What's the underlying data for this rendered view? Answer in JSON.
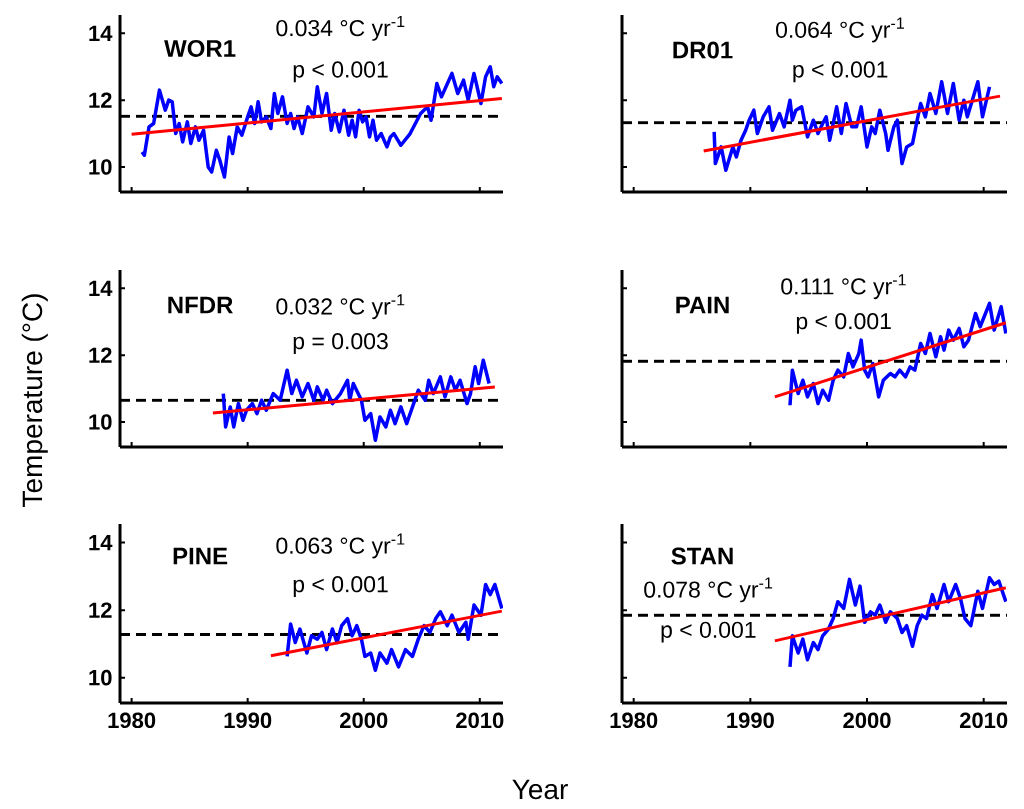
{
  "chart_data": [
    {
      "type": "line",
      "title": "WOR1",
      "annotations": [
        "0.034 °C yr$^{-1}$",
        "p < 0.001"
      ],
      "xlim": [
        1979,
        2012
      ],
      "ylim": [
        9.25,
        14.55
      ],
      "xticks": [
        1980,
        1990,
        2000,
        2010
      ],
      "yticks": [
        10,
        12,
        14
      ],
      "tick_labels": "y",
      "grid": false,
      "ref_lines": [
        {
          "axis": "y",
          "value": 11.52,
          "color": "#000000",
          "line_style": "dashed"
        }
      ],
      "series": [
        {
          "color": "#0000ff",
          "x": [
            1980.9,
            1981.1,
            1981.5,
            1981.9,
            1982.4,
            1982.9,
            1983.2,
            1983.5,
            1983.8,
            1984.1,
            1984.4,
            1984.8,
            1985.1,
            1985.5,
            1985.8,
            1986.2,
            1986.6,
            1986.9,
            1987.3,
            1987.6,
            1988.0,
            1988.4,
            1988.7,
            1989.1,
            1989.5,
            1990.0,
            1990.3,
            1990.6,
            1990.9,
            1991.2,
            1991.6,
            1992.0,
            1992.3,
            1992.6,
            1993.0,
            1993.4,
            1993.7,
            1994.0,
            1994.3,
            1994.7,
            1995.2,
            1995.7,
            1996.0,
            1996.4,
            1996.8,
            1997.2,
            1997.5,
            1997.9,
            1998.3,
            1998.7,
            1999.0,
            1999.3,
            1999.6,
            1999.9,
            2000.2,
            2000.5,
            2000.8,
            2001.1,
            2001.5,
            2002.0,
            2002.3,
            2002.6,
            2003.2,
            2004.0,
            2004.9,
            2005.5,
            2005.8,
            2006.3,
            2006.7,
            2007.6,
            2008.1,
            2008.6,
            2009.0,
            2009.5,
            2010.1,
            2010.5,
            2010.9,
            2011.2,
            2011.5,
            2011.9
          ],
          "values": [
            10.45,
            10.35,
            11.2,
            11.3,
            12.3,
            11.7,
            12.0,
            11.95,
            11.0,
            11.3,
            10.75,
            11.35,
            10.7,
            11.2,
            10.8,
            11.1,
            10.0,
            9.85,
            10.5,
            10.2,
            9.7,
            10.9,
            10.4,
            11.2,
            10.95,
            11.5,
            11.8,
            11.3,
            11.95,
            11.35,
            11.5,
            11.15,
            12.2,
            11.6,
            12.1,
            11.3,
            11.6,
            11.15,
            11.5,
            11.0,
            11.8,
            11.5,
            12.4,
            11.6,
            12.2,
            11.1,
            11.6,
            11.05,
            11.7,
            10.95,
            11.4,
            10.9,
            11.7,
            11.35,
            11.5,
            10.9,
            11.4,
            10.8,
            11.0,
            10.6,
            10.9,
            11.0,
            10.65,
            11.0,
            11.6,
            11.8,
            11.4,
            12.5,
            12.1,
            12.8,
            12.2,
            12.6,
            12.0,
            12.8,
            11.9,
            12.7,
            13.0,
            12.4,
            12.7,
            12.5
          ]
        },
        {
          "type": "line",
          "color": "#ff0000",
          "x": [
            1980,
            2011.9
          ],
          "values": [
            10.98,
            12.05
          ]
        }
      ]
    },
    {
      "type": "line",
      "title": "DR01",
      "annotations": [
        "0.064 °C yr$^{-1}$",
        "p < 0.001"
      ],
      "xlim": [
        1979,
        2012
      ],
      "ylim": [
        9.25,
        14.55
      ],
      "xticks": [
        1980,
        1990,
        2000,
        2010
      ],
      "yticks": [
        10,
        12,
        14
      ],
      "tick_labels": false,
      "grid": false,
      "ref_lines": [
        {
          "axis": "y",
          "value": 11.32,
          "color": "#000000",
          "line_style": "dashed"
        }
      ],
      "series": [
        {
          "color": "#0000ff",
          "x": [
            1986.9,
            1987.0,
            1987.5,
            1987.9,
            1988.5,
            1988.8,
            1989.2,
            1989.6,
            1989.9,
            1990.3,
            1990.6,
            1991.1,
            1991.6,
            1991.9,
            1992.5,
            1992.9,
            1993.4,
            1993.6,
            1993.9,
            1994.4,
            1994.9,
            1995.4,
            1995.8,
            1996.2,
            1996.5,
            1996.8,
            1997.4,
            1997.8,
            1998.2,
            1998.7,
            1999.1,
            1999.5,
            2000.0,
            2000.4,
            2000.7,
            2001.1,
            2001.6,
            2001.8,
            2002.3,
            2002.6,
            2003.0,
            2003.4,
            2003.9,
            2004.3,
            2004.6,
            2005.0,
            2005.4,
            2005.9,
            2006.4,
            2006.9,
            2007.4,
            2007.9,
            2008.3,
            2008.6,
            2009.5,
            2009.9,
            2010.5
          ],
          "values": [
            11.05,
            10.1,
            10.6,
            9.9,
            10.6,
            10.3,
            10.8,
            11.1,
            11.4,
            11.7,
            11.0,
            11.5,
            11.8,
            11.1,
            11.6,
            11.2,
            12.0,
            11.4,
            11.7,
            11.8,
            10.9,
            11.4,
            11.0,
            11.3,
            11.5,
            10.8,
            11.8,
            11.0,
            11.9,
            11.2,
            11.2,
            11.8,
            10.6,
            11.2,
            11.0,
            11.7,
            11.0,
            10.5,
            11.2,
            11.4,
            10.1,
            10.6,
            10.7,
            11.4,
            11.9,
            11.5,
            12.2,
            11.6,
            12.55,
            11.6,
            12.5,
            11.4,
            12.0,
            11.5,
            12.55,
            11.5,
            12.4
          ]
        },
        {
          "type": "line",
          "color": "#ff0000",
          "x": [
            1986.0,
            2011.4
          ],
          "values": [
            10.48,
            12.12
          ]
        }
      ]
    },
    {
      "type": "line",
      "title": "NFDR",
      "ylabel": "Temperature (°C)",
      "annotations": [
        "0.032 °C yr$^{-1}$",
        "p = 0.003"
      ],
      "xlim": [
        1979,
        2012
      ],
      "ylim": [
        9.25,
        14.55
      ],
      "xticks": [
        1980,
        1990,
        2000,
        2010
      ],
      "yticks": [
        10,
        12,
        14
      ],
      "tick_labels": "y",
      "grid": false,
      "ref_lines": [
        {
          "axis": "y",
          "value": 10.65,
          "color": "#000000",
          "line_style": "dashed"
        }
      ],
      "series": [
        {
          "color": "#0000ff",
          "x": [
            1987.9,
            1988.1,
            1988.5,
            1988.8,
            1989.2,
            1989.6,
            1989.9,
            1990.4,
            1990.8,
            1991.2,
            1991.6,
            1992.2,
            1992.8,
            1993.4,
            1993.8,
            1994.2,
            1994.7,
            1995.2,
            1995.7,
            1996.0,
            1996.5,
            1996.8,
            1997.3,
            1998.0,
            1998.6,
            1998.8,
            1999.1,
            1999.8,
            2000.1,
            2000.6,
            2001.0,
            2001.4,
            2001.9,
            2002.3,
            2002.7,
            2003.2,
            2003.7,
            2004.3,
            2004.7,
            2005.3,
            2005.6,
            2006.0,
            2006.6,
            2007.0,
            2007.5,
            2007.9,
            2008.3,
            2008.9,
            2009.2,
            2009.6,
            2009.9,
            2010.3,
            2010.8
          ],
          "values": [
            10.85,
            9.85,
            10.45,
            9.85,
            10.55,
            10.05,
            10.35,
            10.55,
            10.25,
            10.65,
            10.35,
            10.85,
            10.65,
            11.55,
            10.85,
            11.25,
            10.75,
            11.15,
            10.65,
            11.05,
            10.65,
            10.95,
            10.55,
            10.85,
            11.25,
            10.65,
            11.15,
            10.65,
            10.05,
            10.25,
            9.45,
            10.15,
            9.85,
            10.35,
            9.95,
            10.45,
            9.95,
            10.55,
            10.95,
            10.65,
            11.25,
            10.85,
            11.35,
            10.75,
            11.35,
            10.95,
            11.25,
            10.55,
            10.85,
            11.65,
            11.15,
            11.85,
            11.15
          ]
        },
        {
          "type": "line",
          "color": "#ff0000",
          "x": [
            1987.0,
            2011.3
          ],
          "values": [
            10.27,
            11.05
          ]
        }
      ]
    },
    {
      "type": "line",
      "title": "PAIN",
      "annotations": [
        "0.111 °C yr$^{-1}$",
        "p < 0.001"
      ],
      "xlim": [
        1979,
        2012
      ],
      "ylim": [
        9.25,
        14.55
      ],
      "xticks": [
        1980,
        1990,
        2000,
        2010
      ],
      "yticks": [
        10,
        12,
        14
      ],
      "tick_labels": false,
      "grid": false,
      "ref_lines": [
        {
          "axis": "y",
          "value": 11.82,
          "color": "#000000",
          "line_style": "dashed"
        }
      ],
      "series": [
        {
          "color": "#0000ff",
          "x": [
            1993.4,
            1993.6,
            1994.1,
            1994.5,
            1994.9,
            1995.4,
            1995.8,
            1996.2,
            1996.7,
            1997.1,
            1997.5,
            1998.0,
            1998.4,
            1998.8,
            1999.3,
            1999.5,
            1999.8,
            2000.1,
            2000.5,
            2001.0,
            2001.4,
            2002.0,
            2002.4,
            2002.8,
            2003.3,
            2003.7,
            2004.1,
            2004.6,
            2005.0,
            2005.4,
            2005.9,
            2006.3,
            2006.6,
            2007.0,
            2007.4,
            2007.9,
            2008.3,
            2008.7,
            2009.3,
            2009.7,
            2010.5,
            2010.9,
            2011.5,
            2011.9
          ],
          "values": [
            10.5,
            11.55,
            10.85,
            11.25,
            10.75,
            11.15,
            10.55,
            10.95,
            10.65,
            11.25,
            11.55,
            11.35,
            12.05,
            11.65,
            12.05,
            12.45,
            11.55,
            11.35,
            11.75,
            10.75,
            11.25,
            11.45,
            11.35,
            11.55,
            11.35,
            11.65,
            11.55,
            12.35,
            12.05,
            12.65,
            11.95,
            12.55,
            12.15,
            12.75,
            12.45,
            12.8,
            12.25,
            12.45,
            13.25,
            12.85,
            13.55,
            12.75,
            13.45,
            12.65
          ]
        },
        {
          "type": "line",
          "color": "#ff0000",
          "x": [
            1992.1,
            2011.9
          ],
          "values": [
            10.75,
            12.97
          ]
        }
      ]
    },
    {
      "type": "line",
      "title": "PINE",
      "xlabel": "Year",
      "annotations": [
        "0.063 °C yr$^{-1}$",
        "p < 0.001"
      ],
      "xlim": [
        1979,
        2012
      ],
      "ylim": [
        9.25,
        14.55
      ],
      "xticks": [
        1980,
        1990,
        2000,
        2010
      ],
      "yticks": [
        10,
        12,
        14
      ],
      "grid": false,
      "ref_lines": [
        {
          "axis": "y",
          "value": 11.28,
          "color": "#000000",
          "line_style": "dashed"
        }
      ],
      "series": [
        {
          "color": "#0000ff",
          "x": [
            1993.4,
            1993.7,
            1994.1,
            1994.5,
            1995.1,
            1995.5,
            1996.0,
            1996.4,
            1996.8,
            1997.3,
            1997.7,
            1998.1,
            1998.6,
            1999.0,
            1999.4,
            1999.8,
            2000.1,
            2000.6,
            2001.0,
            2001.4,
            2002.0,
            2002.4,
            2003.0,
            2003.6,
            2004.2,
            2004.7,
            2005.2,
            2005.7,
            2006.2,
            2006.6,
            2007.2,
            2007.6,
            2008.2,
            2008.8,
            2009.0,
            2009.5,
            2010.1,
            2010.5,
            2010.9,
            2011.3,
            2011.9
          ],
          "values": [
            10.63,
            11.59,
            11.04,
            11.44,
            10.73,
            11.24,
            11.14,
            11.34,
            10.83,
            11.44,
            11.04,
            11.54,
            11.75,
            11.24,
            11.54,
            11.14,
            10.63,
            10.73,
            10.22,
            10.73,
            10.43,
            10.83,
            10.32,
            10.83,
            10.63,
            11.14,
            11.54,
            11.34,
            11.75,
            11.95,
            11.54,
            11.85,
            11.34,
            11.64,
            11.14,
            12.15,
            11.85,
            12.76,
            12.46,
            12.76,
            12.05
          ]
        },
        {
          "type": "line",
          "color": "#ff0000",
          "x": [
            1992.0,
            2011.9
          ],
          "values": [
            10.65,
            11.97
          ]
        }
      ]
    },
    {
      "type": "line",
      "title": "STAN",
      "annotations": [
        "0.078 °C yr$^{-1}$",
        "p < 0.001"
      ],
      "xlim": [
        1979,
        2012
      ],
      "ylim": [
        9.25,
        14.55
      ],
      "xticks": [
        1980,
        1990,
        2000,
        2010
      ],
      "yticks": [
        10,
        12,
        14
      ],
      "tick_labels": "x",
      "grid": false,
      "ref_lines": [
        {
          "axis": "y",
          "value": 11.85,
          "color": "#000000",
          "line_style": "dashed"
        }
      ],
      "series": [
        {
          "color": "#0000ff",
          "x": [
            1993.4,
            1993.6,
            1994.1,
            1994.5,
            1994.9,
            1995.4,
            1995.8,
            1996.2,
            1996.7,
            1997.1,
            1997.5,
            1998.0,
            1998.5,
            1999.0,
            1999.4,
            1999.8,
            2000.3,
            2000.7,
            2001.1,
            2001.6,
            2002.0,
            2002.6,
            2003.0,
            2003.4,
            2003.9,
            2004.3,
            2004.7,
            2005.1,
            2005.6,
            2006.0,
            2006.6,
            2007.0,
            2007.6,
            2008.0,
            2008.4,
            2008.9,
            2009.5,
            2009.9,
            2010.5,
            2010.9,
            2011.3,
            2011.9
          ],
          "values": [
            10.32,
            11.24,
            10.73,
            11.14,
            10.53,
            11.04,
            10.83,
            11.24,
            11.44,
            11.75,
            12.25,
            12.05,
            12.91,
            12.15,
            12.71,
            11.64,
            11.95,
            11.85,
            12.15,
            11.64,
            11.95,
            11.75,
            11.34,
            11.54,
            10.93,
            11.54,
            11.85,
            11.75,
            12.46,
            12.05,
            12.76,
            12.25,
            12.76,
            12.36,
            11.75,
            11.54,
            12.56,
            12.05,
            12.96,
            12.76,
            12.86,
            12.25
          ]
        },
        {
          "type": "line",
          "color": "#ff0000",
          "x": [
            1992.1,
            2011.9
          ],
          "values": [
            11.09,
            12.66
          ]
        }
      ]
    }
  ]
}
